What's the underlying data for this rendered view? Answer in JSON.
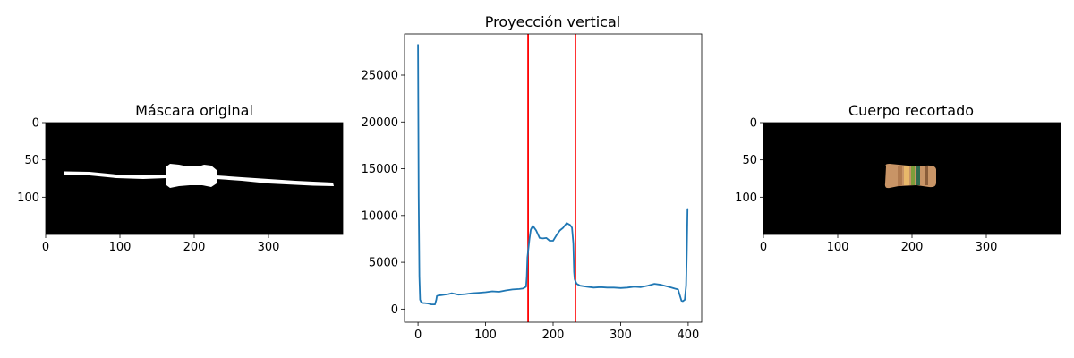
{
  "chart_data": [
    {
      "type": "image",
      "title": "Máscara original",
      "xlim": [
        0,
        400
      ],
      "ylim": [
        150,
        0
      ],
      "xticks": [
        0,
        100,
        200,
        300
      ],
      "yticks": [
        0,
        50,
        100
      ],
      "image_width": 400,
      "image_height": 150,
      "background": "#000000",
      "foreground": "#ffffff",
      "content": "binary mask of a resistor with leads"
    },
    {
      "type": "line",
      "title": "Proyección vertical",
      "xlim": [
        -20,
        420
      ],
      "ylim": [
        -1400,
        29400
      ],
      "xticks": [
        0,
        100,
        200,
        300,
        400
      ],
      "yticks": [
        0,
        5000,
        10000,
        15000,
        20000,
        25000
      ],
      "line_color": "#1f77b4",
      "vlines": [
        {
          "x": 163,
          "color": "#ff0000"
        },
        {
          "x": 233,
          "color": "#ff0000"
        }
      ],
      "series": [
        {
          "x": [
            0,
            1,
            2,
            3,
            5,
            8,
            10,
            15,
            20,
            25,
            27,
            28,
            30,
            35,
            45,
            50,
            60,
            70,
            80,
            90,
            100,
            110,
            120,
            130,
            140,
            150,
            155,
            158,
            160,
            161,
            162,
            163,
            165,
            167,
            170,
            175,
            180,
            185,
            190,
            195,
            200,
            205,
            210,
            215,
            220,
            225,
            228,
            230,
            231,
            232,
            233,
            235,
            240,
            250,
            260,
            270,
            280,
            290,
            300,
            310,
            320,
            330,
            340,
            350,
            360,
            370,
            375,
            380,
            385,
            390,
            392,
            395,
            397,
            398,
            399,
            400
          ],
          "values": [
            28300,
            12000,
            3500,
            1000,
            700,
            650,
            650,
            600,
            500,
            500,
            1000,
            1400,
            1450,
            1500,
            1600,
            1700,
            1550,
            1600,
            1700,
            1750,
            1800,
            1900,
            1850,
            2000,
            2100,
            2150,
            2200,
            2300,
            2400,
            3500,
            5500,
            6200,
            7500,
            8500,
            8900,
            8400,
            7600,
            7550,
            7600,
            7300,
            7300,
            7900,
            8400,
            8700,
            9200,
            9000,
            8700,
            7000,
            4000,
            3200,
            3000,
            2700,
            2500,
            2400,
            2300,
            2350,
            2300,
            2300,
            2250,
            2300,
            2400,
            2350,
            2500,
            2700,
            2600,
            2400,
            2300,
            2200,
            2100,
            900,
            850,
            1000,
            2500,
            6000,
            10700,
            10700
          ]
        }
      ]
    },
    {
      "type": "image",
      "title": "Cuerpo recortado",
      "xlim": [
        0,
        400
      ],
      "ylim": [
        150,
        0
      ],
      "xticks": [
        0,
        100,
        200,
        300
      ],
      "yticks": [
        0,
        50,
        100
      ],
      "image_width": 400,
      "image_height": 150,
      "background": "#000000",
      "content": "cropped resistor body with color bands",
      "colors": [
        "#c89466",
        "#b07a4f",
        "#e8b86a",
        "#7d9e3a",
        "#2f6b4e",
        "#c79a6d",
        "#8a5d3a"
      ]
    }
  ]
}
